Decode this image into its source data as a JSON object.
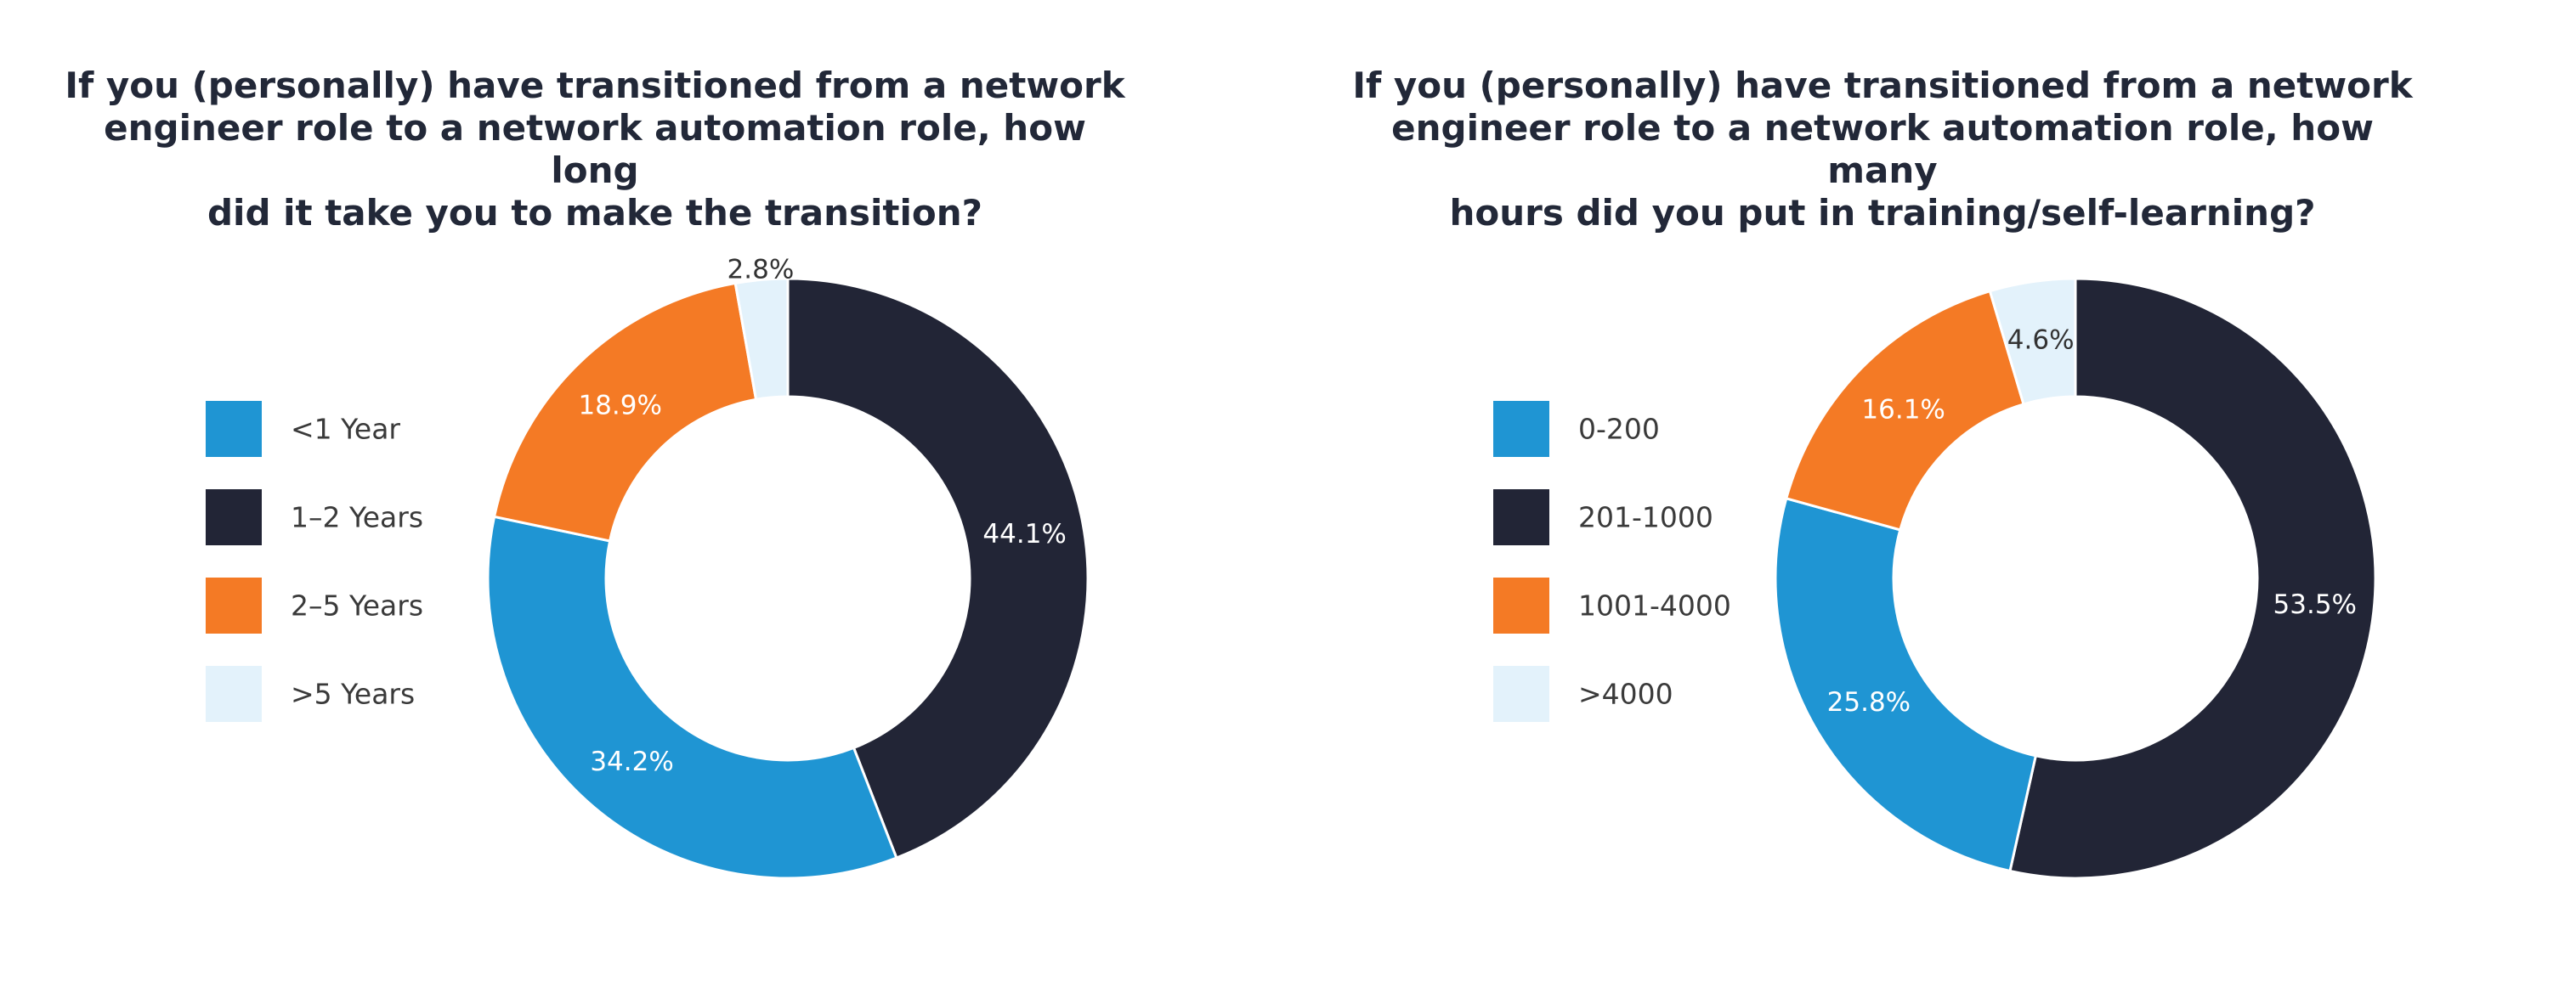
{
  "chart_data": [
    {
      "type": "pie",
      "title": "If you (personally) have transitioned from a network\nengineer role to a network automation role, how long\ndid it take you to make the transition?",
      "categories": [
        "<1 Year",
        "1–2 Years",
        "2–5 Years",
        ">5 Years"
      ],
      "values": [
        34.2,
        44.1,
        18.9,
        2.8
      ],
      "value_labels": [
        "34.2%",
        "44.1%",
        "18.9%",
        "2.8%"
      ],
      "colors": [
        "#1f95d3",
        "#222536",
        "#f47a25",
        "#e3f2fb"
      ],
      "label_colors": [
        "#ffffff",
        "#ffffff",
        "#ffffff",
        "#333333"
      ],
      "hole": true,
      "legend_placement": "left"
    },
    {
      "type": "pie",
      "title": "If you (personally) have transitioned from a network\nengineer role to a network automation role, how many\nhours did you put in training/self-learning?",
      "categories": [
        "0-200",
        "201-1000",
        "1001-4000",
        ">4000"
      ],
      "values": [
        25.8,
        53.5,
        16.1,
        4.6
      ],
      "value_labels": [
        "25.8%",
        "53.5%",
        "16.1%",
        "4.6%"
      ],
      "colors": [
        "#1f95d3",
        "#222536",
        "#f47a25",
        "#e3f2fb"
      ],
      "label_colors": [
        "#ffffff",
        "#ffffff",
        "#ffffff",
        "#333333"
      ],
      "hole": true,
      "legend_placement": "left"
    }
  ]
}
